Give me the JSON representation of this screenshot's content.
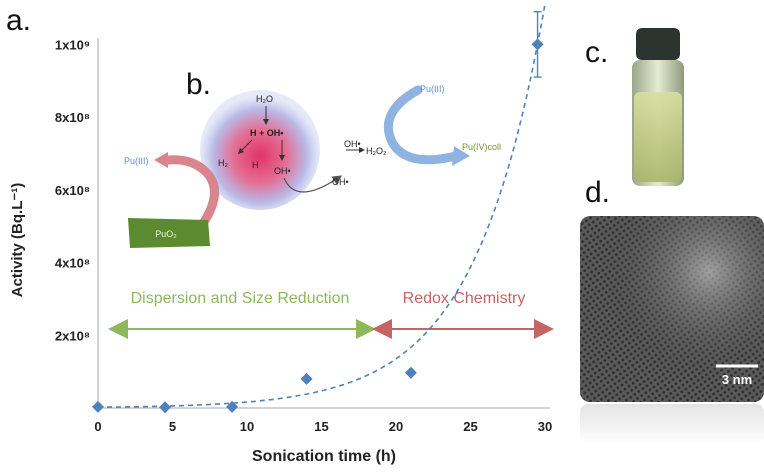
{
  "panels": {
    "a": "a.",
    "b": "b.",
    "c": "c.",
    "d": "d."
  },
  "chart_data": {
    "type": "scatter",
    "xlabel": "Sonication time (h)",
    "ylabel": "Activity (Bq.L⁻¹)",
    "xlim": [
      0,
      30
    ],
    "ylim": [
      0,
      1100000000
    ],
    "x_ticks": [
      0,
      5,
      10,
      15,
      20,
      25,
      30
    ],
    "x_tick_labels": [
      "0",
      "5",
      "10",
      "15",
      "20",
      "25",
      "30"
    ],
    "y_ticks": [
      200000000,
      400000000,
      600000000,
      800000000,
      1000000000
    ],
    "y_tick_labels": [
      "2x10⁸",
      "4x10⁸",
      "6x10⁸",
      "8x10⁸",
      "1x10⁹"
    ],
    "points": [
      {
        "x": 0,
        "y": 3000000
      },
      {
        "x": 4.5,
        "y": 2000000
      },
      {
        "x": 9,
        "y": 3000000
      },
      {
        "x": 14,
        "y": 80000000
      },
      {
        "x": 21,
        "y": 97000000
      },
      {
        "x": 29.5,
        "y": 1000000000,
        "err": 90000000
      }
    ],
    "fit": {
      "style": "dashed",
      "color": "#4f81bd"
    },
    "marker_color": "#4f81bd",
    "grid": false,
    "regions": [
      {
        "label": "Dispersion and Size Reduction",
        "x_from": 1,
        "x_to": 18.2,
        "color": "#8db95a"
      },
      {
        "label": "Redox Chemistry",
        "x_from": 18.8,
        "x_to": 30,
        "color": "#c46464"
      }
    ]
  },
  "scheme": {
    "h2o": "H₂O",
    "h_oh": "H + OH•",
    "h2": "H₂",
    "h": "H",
    "oh_center": "OH•",
    "oh_right": "OH•",
    "oh_top": "OH•",
    "h2o2": "H₂O₂",
    "pu3_left": "Pu(III)",
    "pu3_right": "Pu(III)",
    "pu4": "Pu(IV)coll",
    "puo2": "PuO₂",
    "colors": {
      "pu": "#5b8fd6",
      "puo2_box": "#5c8a2e",
      "pu4": "#6e9b2f",
      "sphere": "#e0336c"
    }
  },
  "tem": {
    "scale_bar": "3 nm"
  }
}
